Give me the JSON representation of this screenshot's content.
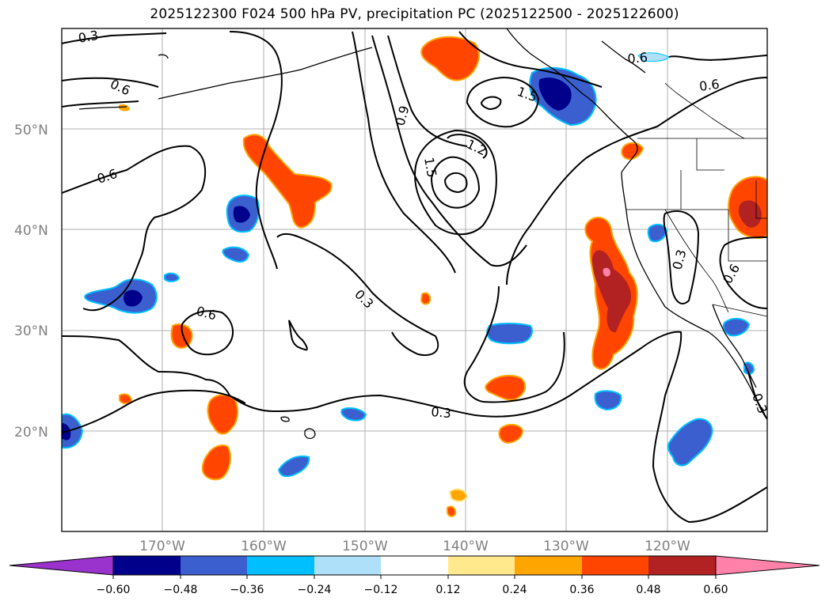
{
  "title": "2025122300 F024 500 hPa PV, precipitation PC (2025122500 - 2025122600)",
  "map": {
    "lat_labels": [
      "50°N",
      "40°N",
      "30°N",
      "20°N"
    ],
    "lon_labels": [
      "170°W",
      "160°W",
      "150°W",
      "140°W",
      "130°W",
      "120°W"
    ],
    "contour_labels": [
      "0.3",
      "0.6",
      "0.9",
      "1.2",
      "1.5",
      "1.5",
      "0.6",
      "0.6",
      "0.6",
      "0.3",
      "0.3",
      "0.6",
      "0.3",
      "0.6",
      "0.3"
    ],
    "colors": {
      "contour": "#000000",
      "coast": "#000000",
      "grid": "#b0b0b0",
      "label": "#808080"
    }
  },
  "colorbar": {
    "ticks": [
      "−0.60",
      "−0.48",
      "−0.36",
      "−0.24",
      "−0.12",
      "0.12",
      "0.24",
      "0.36",
      "0.48",
      "0.60"
    ],
    "colors": [
      "#9a32cd",
      "#00008b",
      "#3b5fcf",
      "#00bfff",
      "#afe0fa",
      "#ffffff",
      "#ffe98c",
      "#ffa500",
      "#ff4500",
      "#b22222",
      "#ff82ab"
    ]
  }
}
